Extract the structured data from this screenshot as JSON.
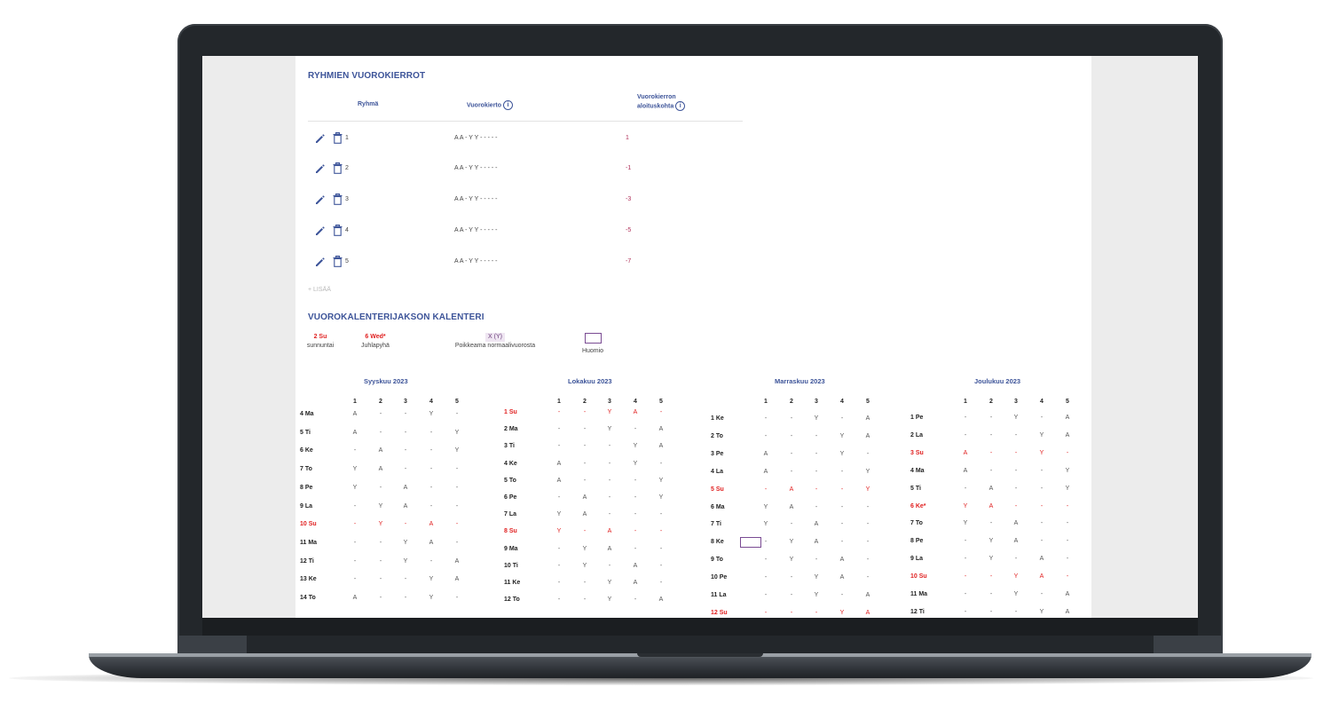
{
  "groups_section": {
    "title": "RYHMIEN VUOROKIERROT",
    "col_group": "Ryhmä",
    "col_rotation": "Vuorokierto",
    "col_start_line1": "Vuorokierron",
    "col_start_line2": "aloituskohta",
    "rows": [
      {
        "group": "1",
        "rotation": "A A - Y Y - - - - -",
        "start": "1"
      },
      {
        "group": "2",
        "rotation": "A A - Y Y - - - - -",
        "start": "-1"
      },
      {
        "group": "3",
        "rotation": "A A - Y Y - - - - -",
        "start": "-3"
      },
      {
        "group": "4",
        "rotation": "A A - Y Y - - - - -",
        "start": "-5"
      },
      {
        "group": "5",
        "rotation": "A A - Y Y - - - - -",
        "start": "-7"
      }
    ],
    "add_label": "+ LISÄÄ"
  },
  "calendar_section": {
    "title": "VUOROKALENTERIJAKSON KALENTERI",
    "legend": [
      {
        "sample": "2 Su",
        "label": "sunnuntai"
      },
      {
        "sample": "6 Wed*",
        "label": "Juhlapyhä"
      },
      {
        "sample": "X (Y)",
        "label": "Poikkeama normaalivuorosta"
      },
      {
        "sample": "",
        "label": "Huomio"
      }
    ],
    "group_headers": [
      "1",
      "2",
      "3",
      "4",
      "5"
    ],
    "months": [
      {
        "title": "Syyskuu 2023",
        "days": [
          {
            "day": "4 Ma",
            "holiday": false,
            "shifts": [
              "A",
              "-",
              "-",
              "Y",
              "-"
            ]
          },
          {
            "day": "5 Ti",
            "holiday": false,
            "shifts": [
              "A",
              "-",
              "-",
              "-",
              "Y"
            ]
          },
          {
            "day": "6 Ke",
            "holiday": false,
            "shifts": [
              "-",
              "A",
              "-",
              "-",
              "Y"
            ]
          },
          {
            "day": "7 To",
            "holiday": false,
            "shifts": [
              "Y",
              "A",
              "-",
              "-",
              "-"
            ]
          },
          {
            "day": "8 Pe",
            "holiday": false,
            "shifts": [
              "Y",
              "-",
              "A",
              "-",
              "-"
            ]
          },
          {
            "day": "9 La",
            "holiday": false,
            "shifts": [
              "-",
              "Y",
              "A",
              "-",
              "-"
            ]
          },
          {
            "day": "10 Su",
            "holiday": true,
            "shifts": [
              "-",
              "Y",
              "-",
              "A",
              "-"
            ]
          },
          {
            "day": "11 Ma",
            "holiday": false,
            "shifts": [
              "-",
              "-",
              "Y",
              "A",
              "-"
            ]
          },
          {
            "day": "12 Ti",
            "holiday": false,
            "shifts": [
              "-",
              "-",
              "Y",
              "-",
              "A"
            ]
          },
          {
            "day": "13 Ke",
            "holiday": false,
            "shifts": [
              "-",
              "-",
              "-",
              "Y",
              "A"
            ]
          },
          {
            "day": "14 To",
            "holiday": false,
            "shifts": [
              "A",
              "-",
              "-",
              "Y",
              "-"
            ]
          }
        ]
      },
      {
        "title": "Lokakuu 2023",
        "days": [
          {
            "day": "1 Su",
            "holiday": true,
            "shifts": [
              "-",
              "-",
              "Y",
              "A",
              "-"
            ]
          },
          {
            "day": "2 Ma",
            "holiday": false,
            "shifts": [
              "-",
              "-",
              "Y",
              "-",
              "A"
            ]
          },
          {
            "day": "3 Ti",
            "holiday": false,
            "shifts": [
              "-",
              "-",
              "-",
              "Y",
              "A"
            ]
          },
          {
            "day": "4 Ke",
            "holiday": false,
            "shifts": [
              "A",
              "-",
              "-",
              "Y",
              "-"
            ]
          },
          {
            "day": "5 To",
            "holiday": false,
            "shifts": [
              "A",
              "-",
              "-",
              "-",
              "Y"
            ]
          },
          {
            "day": "6 Pe",
            "holiday": false,
            "shifts": [
              "-",
              "A",
              "-",
              "-",
              "Y"
            ]
          },
          {
            "day": "7 La",
            "holiday": false,
            "shifts": [
              "Y",
              "A",
              "-",
              "-",
              "-"
            ]
          },
          {
            "day": "8 Su",
            "holiday": true,
            "shifts": [
              "Y",
              "-",
              "A",
              "-",
              "-"
            ]
          },
          {
            "day": "9 Ma",
            "holiday": false,
            "shifts": [
              "-",
              "Y",
              "A",
              "-",
              "-"
            ]
          },
          {
            "day": "10 Ti",
            "holiday": false,
            "shifts": [
              "-",
              "Y",
              "-",
              "A",
              "-"
            ]
          },
          {
            "day": "11 Ke",
            "holiday": false,
            "shifts": [
              "-",
              "-",
              "Y",
              "A",
              "-"
            ]
          },
          {
            "day": "12 To",
            "holiday": false,
            "shifts": [
              "-",
              "-",
              "Y",
              "-",
              "A"
            ]
          }
        ]
      },
      {
        "title": "Marraskuu 2023",
        "days": [
          {
            "day": "1 Ke",
            "holiday": false,
            "shifts": [
              "-",
              "-",
              "Y",
              "-",
              "A"
            ]
          },
          {
            "day": "2 To",
            "holiday": false,
            "shifts": [
              "-",
              "-",
              "-",
              "Y",
              "A"
            ]
          },
          {
            "day": "3 Pe",
            "holiday": false,
            "shifts": [
              "A",
              "-",
              "-",
              "Y",
              "-"
            ]
          },
          {
            "day": "4 La",
            "holiday": false,
            "shifts": [
              "A",
              "-",
              "-",
              "-",
              "Y"
            ]
          },
          {
            "day": "5 Su",
            "holiday": true,
            "shifts": [
              "-",
              "A",
              "-",
              "-",
              "Y"
            ]
          },
          {
            "day": "6 Ma",
            "holiday": false,
            "shifts": [
              "Y",
              "A",
              "-",
              "-",
              "-"
            ]
          },
          {
            "day": "7 Ti",
            "holiday": false,
            "shifts": [
              "Y",
              "-",
              "A",
              "-",
              "-"
            ]
          },
          {
            "day": "8 Ke",
            "holiday": false,
            "shifts": [
              "-",
              "Y",
              "A",
              "-",
              "-"
            ]
          },
          {
            "day": "9 To",
            "holiday": false,
            "shifts": [
              "-",
              "Y",
              "-",
              "A",
              "-"
            ]
          },
          {
            "day": "10 Pe",
            "holiday": false,
            "shifts": [
              "-",
              "-",
              "Y",
              "A",
              "-"
            ]
          },
          {
            "day": "11 La",
            "holiday": false,
            "shifts": [
              "-",
              "-",
              "Y",
              "-",
              "A"
            ]
          },
          {
            "day": "12 Su",
            "holiday": true,
            "shifts": [
              "-",
              "-",
              "-",
              "Y",
              "A"
            ]
          }
        ]
      },
      {
        "title": "Joulukuu 2023",
        "days": [
          {
            "day": "1 Pe",
            "holiday": false,
            "shifts": [
              "-",
              "-",
              "Y",
              "-",
              "A"
            ]
          },
          {
            "day": "2 La",
            "holiday": false,
            "shifts": [
              "-",
              "-",
              "-",
              "Y",
              "A"
            ]
          },
          {
            "day": "3 Su",
            "holiday": true,
            "shifts": [
              "A",
              "-",
              "-",
              "Y",
              "-"
            ]
          },
          {
            "day": "4 Ma",
            "holiday": false,
            "shifts": [
              "A",
              "-",
              "-",
              "-",
              "Y"
            ]
          },
          {
            "day": "5 Ti",
            "holiday": false,
            "shifts": [
              "-",
              "A",
              "-",
              "-",
              "Y"
            ]
          },
          {
            "day": "6 Ke*",
            "holiday": true,
            "shifts": [
              "Y",
              "A",
              "-",
              "-",
              "-"
            ]
          },
          {
            "day": "7 To",
            "holiday": false,
            "shifts": [
              "Y",
              "-",
              "A",
              "-",
              "-"
            ]
          },
          {
            "day": "8 Pe",
            "holiday": false,
            "shifts": [
              "-",
              "Y",
              "A",
              "-",
              "-"
            ]
          },
          {
            "day": "9 La",
            "holiday": false,
            "shifts": [
              "-",
              "Y",
              "-",
              "A",
              "-"
            ]
          },
          {
            "day": "10 Su",
            "holiday": true,
            "shifts": [
              "-",
              "-",
              "Y",
              "A",
              "-"
            ]
          },
          {
            "day": "11 Ma",
            "holiday": false,
            "shifts": [
              "-",
              "-",
              "Y",
              "-",
              "A"
            ]
          },
          {
            "day": "12 Ti",
            "holiday": false,
            "shifts": [
              "-",
              "-",
              "-",
              "Y",
              "A"
            ]
          }
        ]
      }
    ]
  }
}
